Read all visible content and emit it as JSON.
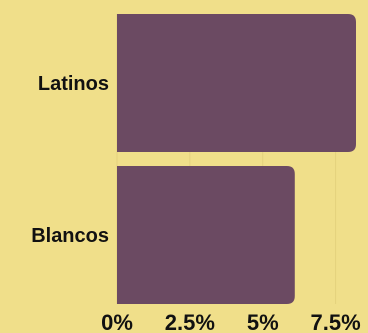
{
  "chart_data": {
    "type": "bar",
    "orientation": "horizontal",
    "categories": [
      "Latinos",
      "Blancos"
    ],
    "values": [
      8.2,
      6.1
    ],
    "xlim": [
      0,
      8.2
    ],
    "xticks": [
      0,
      2.5,
      5,
      7.5
    ],
    "xtick_labels": [
      "0%",
      "2.5%",
      "5%",
      "7.5%"
    ],
    "grid": true,
    "bar_color": "#6b4a62",
    "background_color": "#f0df8a"
  }
}
